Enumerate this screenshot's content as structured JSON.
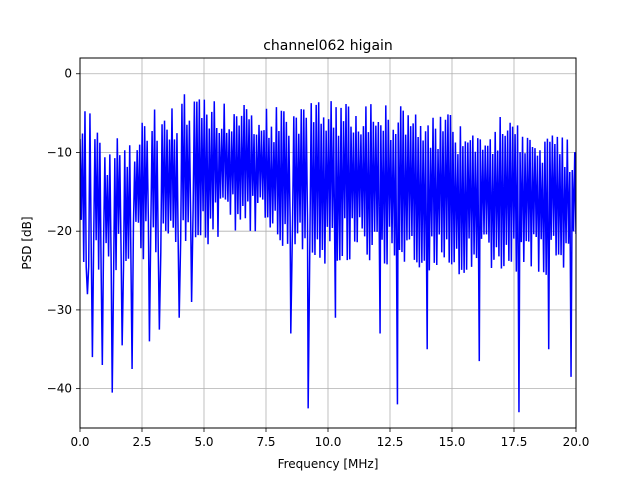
{
  "chart_data": {
    "type": "line",
    "title": "channel062 higain",
    "xlabel": "Frequency [MHz]",
    "ylabel": "PSD [dB]",
    "xlim": [
      0,
      20
    ],
    "ylim": [
      -45,
      2
    ],
    "x_ticks": [
      0,
      2.5,
      5,
      7.5,
      10,
      12.5,
      15,
      17.5,
      20
    ],
    "x_tick_labels": [
      "0.0",
      "2.5",
      "5.0",
      "7.5",
      "10.0",
      "12.5",
      "15.0",
      "17.5",
      "20.0"
    ],
    "y_ticks": [
      0,
      -10,
      -20,
      -30,
      -40
    ],
    "y_tick_labels": [
      "0",
      "−10",
      "−20",
      "−30",
      "−40"
    ],
    "grid": true,
    "series": [
      {
        "color": "#0000ff",
        "x_start": 0,
        "x_end": 20,
        "points": 400,
        "upper_envelope": [
          [
            0,
            -4
          ],
          [
            0.2,
            -3
          ],
          [
            1,
            -9
          ],
          [
            1.5,
            -7
          ],
          [
            2,
            -7
          ],
          [
            2.5,
            -6
          ],
          [
            3,
            -4
          ],
          [
            3.5,
            -5
          ],
          [
            4,
            -3
          ],
          [
            4.5,
            -1
          ],
          [
            5,
            -3
          ],
          [
            6,
            -3
          ],
          [
            7,
            -3
          ],
          [
            8,
            -4
          ],
          [
            9,
            -4
          ],
          [
            10,
            -3
          ],
          [
            11,
            -3
          ],
          [
            12,
            -3
          ],
          [
            13,
            -4
          ],
          [
            14,
            -5
          ],
          [
            15,
            -5
          ],
          [
            16,
            -6
          ],
          [
            17,
            -5
          ],
          [
            18,
            -7
          ],
          [
            19,
            -7
          ],
          [
            20,
            -8
          ]
        ],
        "lower_envelope": [
          [
            0,
            -24
          ],
          [
            1,
            -27
          ],
          [
            2,
            -25
          ],
          [
            3,
            -24
          ],
          [
            4,
            -24
          ],
          [
            5,
            -22
          ],
          [
            6,
            -20
          ],
          [
            7,
            -20
          ],
          [
            8,
            -22
          ],
          [
            9,
            -24
          ],
          [
            10,
            -25
          ],
          [
            11,
            -24
          ],
          [
            12,
            -24
          ],
          [
            13,
            -25
          ],
          [
            14,
            -26
          ],
          [
            15,
            -26
          ],
          [
            16,
            -26
          ],
          [
            17,
            -26
          ],
          [
            18,
            -26
          ],
          [
            19,
            -26
          ],
          [
            20,
            -25
          ]
        ],
        "deep_dips": [
          [
            0.3,
            -28
          ],
          [
            0.5,
            -36
          ],
          [
            0.9,
            -37
          ],
          [
            1.3,
            -40.5
          ],
          [
            1.7,
            -34.5
          ],
          [
            2.1,
            -37.5
          ],
          [
            2.8,
            -34
          ],
          [
            3.2,
            -32.5
          ],
          [
            4.0,
            -31
          ],
          [
            4.5,
            -29
          ],
          [
            8.5,
            -33
          ],
          [
            9.2,
            -42.5
          ],
          [
            10.3,
            -31
          ],
          [
            12.1,
            -33
          ],
          [
            12.8,
            -42
          ],
          [
            14.0,
            -35
          ],
          [
            16.1,
            -36.5
          ],
          [
            17.7,
            -43
          ],
          [
            18.9,
            -35
          ],
          [
            19.8,
            -38.5
          ]
        ]
      }
    ]
  }
}
